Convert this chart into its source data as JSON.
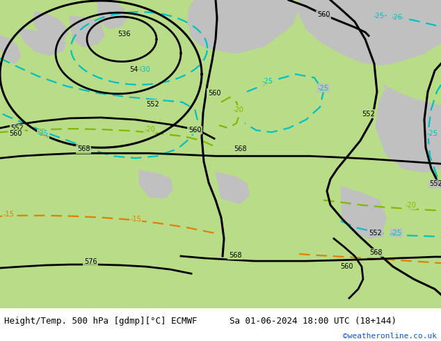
{
  "title_left": "Height/Temp. 500 hPa [gdmp][°C] ECMWF",
  "title_right": "Sa 01-06-2024 18:00 UTC (18+144)",
  "credit": "©weatheronline.co.uk",
  "bg_color": "#c8d8a0",
  "land_color": "#b8dc88",
  "sea_color": "#c0c0c0",
  "river_color": "#c0a0b0",
  "height_contour_color": "#000000",
  "temp_cyan_color": "#00c0c0",
  "temp_green_color": "#80b800",
  "temp_orange_color": "#e08000",
  "bottom_bar_color": "#ffffff",
  "font_size_title": 9,
  "font_size_labels": 7,
  "font_size_credit": 8
}
